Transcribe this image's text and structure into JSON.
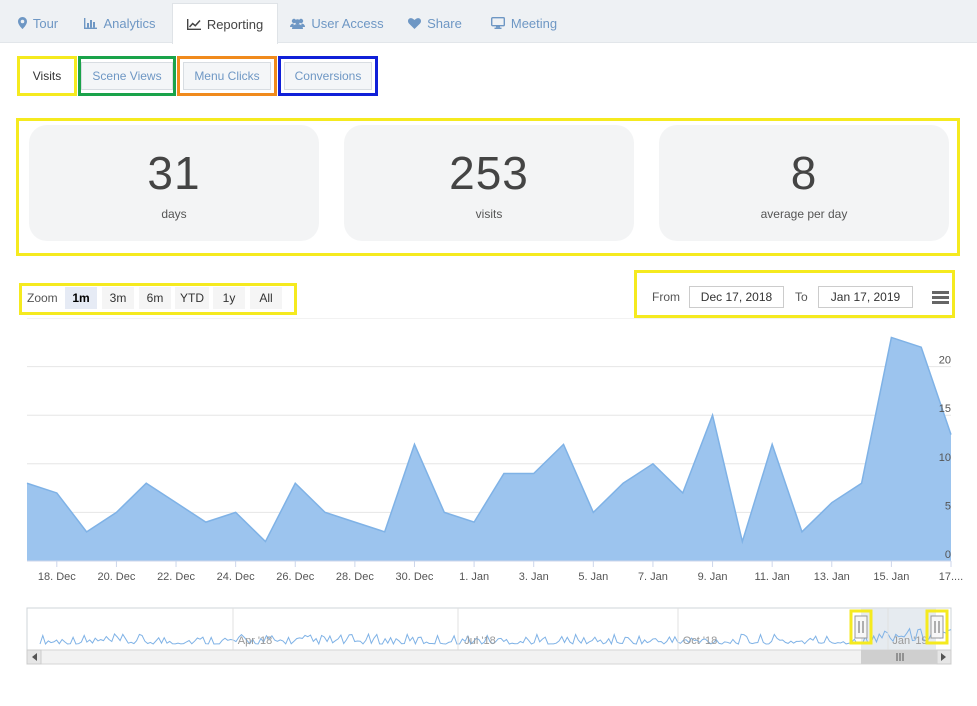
{
  "tabs": [
    {
      "label": "Tour",
      "icon": "map-marker-icon"
    },
    {
      "label": "Analytics",
      "icon": "bar-chart-icon"
    },
    {
      "label": "Reporting",
      "icon": "line-chart-icon",
      "active": true
    },
    {
      "label": "User Access",
      "icon": "users-icon"
    },
    {
      "label": "Share",
      "icon": "heart-icon"
    },
    {
      "label": "Meeting",
      "icon": "monitor-icon"
    }
  ],
  "subtabs": [
    {
      "label": "Visits",
      "active": true
    },
    {
      "label": "Scene Views"
    },
    {
      "label": "Menu Clicks"
    },
    {
      "label": "Conversions"
    }
  ],
  "stats": [
    {
      "value": "31",
      "label": "days"
    },
    {
      "value": "253",
      "label": "visits"
    },
    {
      "value": "8",
      "label": "average per day"
    }
  ],
  "zoom": {
    "label": "Zoom",
    "buttons": [
      "1m",
      "3m",
      "6m",
      "YTD",
      "1y",
      "All"
    ],
    "selected": "1m"
  },
  "range": {
    "from_label": "From",
    "from_value": "Dec 17, 2018",
    "to_label": "To",
    "to_value": "Jan 17, 2019"
  },
  "colors": {
    "area_fill": "#9cc4ee",
    "area_line": "#7fb2e6",
    "highlight_yellow": "#f5ea1f",
    "highlight_green": "#1aa34a",
    "highlight_orange": "#f08a1c",
    "highlight_blue": "#1020d8"
  },
  "chart_data": {
    "type": "area",
    "x": [
      "17. Dec",
      "18. Dec",
      "19. Dec",
      "20. Dec",
      "21. Dec",
      "22. Dec",
      "23. Dec",
      "24. Dec",
      "25. Dec",
      "26. Dec",
      "27. Dec",
      "28. Dec",
      "29. Dec",
      "30. Dec",
      "31. Dec",
      "1. Jan",
      "2. Jan",
      "3. Jan",
      "4. Jan",
      "5. Jan",
      "6. Jan",
      "7. Jan",
      "8. Jan",
      "9. Jan",
      "10. Jan",
      "11. Jan",
      "12. Jan",
      "13. Jan",
      "14. Jan",
      "15. Jan",
      "16. Jan",
      "17. Jan"
    ],
    "values": [
      8,
      7,
      3,
      5,
      8,
      6,
      4,
      5,
      2,
      8,
      5,
      4,
      3,
      12,
      5,
      4,
      9,
      9,
      12,
      5,
      8,
      10,
      7,
      15,
      2,
      12,
      3,
      6,
      8,
      23,
      22,
      13
    ],
    "x_tick_labels": [
      "18. Dec",
      "20. Dec",
      "22. Dec",
      "24. Dec",
      "26. Dec",
      "28. Dec",
      "30. Dec",
      "1. Jan",
      "3. Jan",
      "5. Jan",
      "7. Jan",
      "9. Jan",
      "11. Jan",
      "13. Jan",
      "15. Jan",
      "17...."
    ],
    "y_tick_labels": [
      "0",
      "5",
      "10",
      "15",
      "20"
    ],
    "ylim": [
      0,
      25
    ],
    "grid": true,
    "navigator_labels": [
      "Apr '18",
      "Jul '18",
      "Oct '18",
      "Jan '19"
    ]
  }
}
